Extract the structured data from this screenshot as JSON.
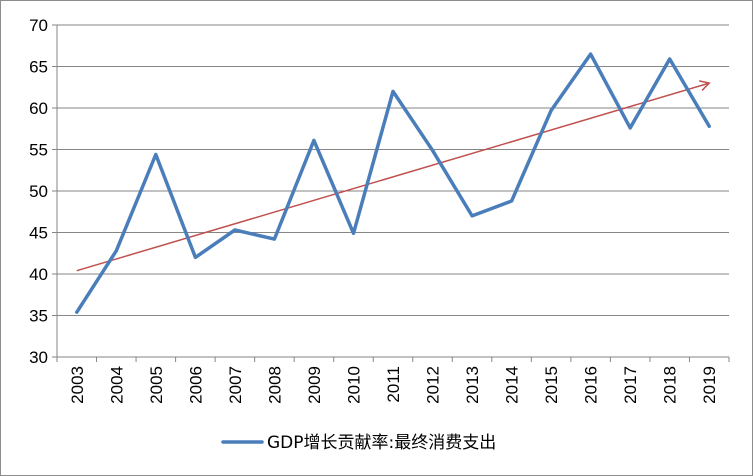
{
  "chart_data": {
    "type": "line",
    "title": "",
    "xlabel": "",
    "ylabel": "",
    "x": [
      "2003",
      "2004",
      "2005",
      "2006",
      "2007",
      "2008",
      "2009",
      "2010",
      "2011",
      "2012",
      "2013",
      "2014",
      "2015",
      "2016",
      "2017",
      "2018",
      "2019"
    ],
    "ylim": [
      30,
      70
    ],
    "yticks": [
      30,
      35,
      40,
      45,
      50,
      55,
      60,
      65,
      70
    ],
    "grid": "horizontal",
    "legend_position": "bottom",
    "series": [
      {
        "name": "GDP增长贡献率:最终消费支出",
        "color": "#4a7ebb",
        "values": [
          35.4,
          42.8,
          54.4,
          42.0,
          45.3,
          44.2,
          56.1,
          44.9,
          62.0,
          54.9,
          47.0,
          48.8,
          59.7,
          66.5,
          57.6,
          65.9,
          57.8
        ]
      }
    ],
    "trendline": {
      "color": "#c0504d",
      "start": [
        2003,
        40.4
      ],
      "end": [
        2019,
        63.0
      ],
      "arrow": true
    }
  }
}
